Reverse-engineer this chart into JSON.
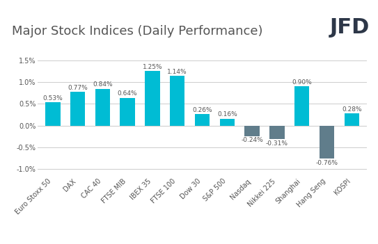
{
  "title": "Major Stock Indices (Daily Performance)",
  "categories": [
    "Euro Stoxx 50",
    "DAX",
    "CAC 40",
    "FTSE MIB",
    "IBEX 35",
    "FTSE 100",
    "Dow 30",
    "S&P 500",
    "Nasdaq",
    "Nikkei 225",
    "Shanghai",
    "Hang Seng",
    "KOSPI"
  ],
  "values": [
    0.53,
    0.77,
    0.84,
    0.64,
    1.25,
    1.14,
    0.26,
    0.16,
    -0.24,
    -0.31,
    0.9,
    -0.76,
    0.28
  ],
  "bar_colors_positive": "#00bcd4",
  "bar_colors_negative": "#607d8b",
  "background_color": "#ffffff",
  "ylim": [
    -1.15,
    1.65
  ],
  "yticks": [
    -1.0,
    -0.5,
    0.0,
    0.5,
    1.0,
    1.5
  ],
  "title_fontsize": 13,
  "tick_fontsize": 7,
  "value_fontsize": 6.5,
  "grid_color": "#cccccc",
  "text_color": "#555555",
  "logo_text": "JFD",
  "logo_fontsize": 22,
  "logo_color": "#2d3748"
}
